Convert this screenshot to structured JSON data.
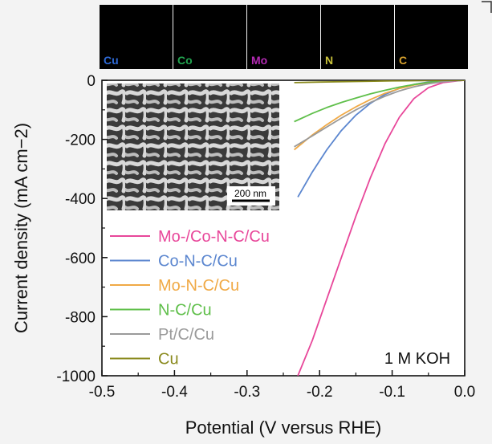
{
  "chart_data": {
    "type": "line",
    "xlabel": "Potential (V versus RHE)",
    "ylabel": "Current density (mA cm−2)",
    "xlim": [
      -0.5,
      0.0
    ],
    "ylim": [
      -1000,
      0
    ],
    "xticks": [
      "-0.5",
      "-0.4",
      "-0.3",
      "-0.2",
      "-0.1",
      "0.0"
    ],
    "yticks": [
      "0",
      "-200",
      "-400",
      "-600",
      "-800",
      "-1000"
    ],
    "grid": false,
    "legend_placement": "lower-left",
    "annotation": "1 M KOH",
    "scale_bar_label": "200 nm",
    "element_maps": [
      {
        "label": "Cu",
        "color": "#2f6bd8"
      },
      {
        "label": "Co",
        "color": "#22a550"
      },
      {
        "label": "Mo",
        "color": "#b42ab4"
      },
      {
        "label": "N",
        "color": "#c9c23a"
      },
      {
        "label": "C",
        "color": "#d9a32e"
      }
    ],
    "series": [
      {
        "name": "Mo-/Co-N-C/Cu",
        "color": "#e8479a",
        "x": [
          -0.23,
          -0.21,
          -0.19,
          -0.17,
          -0.15,
          -0.13,
          -0.11,
          -0.09,
          -0.07,
          -0.05,
          -0.03,
          -0.01,
          0.0
        ],
        "y": [
          -1000,
          -880,
          -740,
          -600,
          -460,
          -330,
          -215,
          -125,
          -62,
          -25,
          -8,
          -2,
          0
        ]
      },
      {
        "name": "Co-N-C/Cu",
        "color": "#5b86cf",
        "x": [
          -0.23,
          -0.21,
          -0.19,
          -0.17,
          -0.15,
          -0.13,
          -0.11,
          -0.09,
          -0.07,
          -0.05,
          -0.03,
          -0.01,
          0.0
        ],
        "y": [
          -395,
          -310,
          -235,
          -170,
          -118,
          -78,
          -48,
          -27,
          -14,
          -6,
          -2,
          -1,
          0
        ]
      },
      {
        "name": "Mo-N-C/Cu",
        "color": "#f0a945",
        "x": [
          -0.235,
          -0.21,
          -0.19,
          -0.17,
          -0.15,
          -0.13,
          -0.11,
          -0.09,
          -0.07,
          -0.05,
          -0.03,
          -0.01,
          0.0
        ],
        "y": [
          -235,
          -185,
          -150,
          -118,
          -90,
          -65,
          -44,
          -28,
          -16,
          -8,
          -3,
          -1,
          0
        ]
      },
      {
        "name": "N-C/Cu",
        "color": "#5fbf4a",
        "x": [
          -0.235,
          -0.21,
          -0.19,
          -0.17,
          -0.15,
          -0.13,
          -0.11,
          -0.09,
          -0.07,
          -0.05,
          -0.03,
          -0.01,
          0.0
        ],
        "y": [
          -140,
          -112,
          -92,
          -75,
          -60,
          -46,
          -34,
          -23,
          -14,
          -7,
          -3,
          -1,
          0
        ]
      },
      {
        "name": "Pt/C/Cu",
        "color": "#9a9a9a",
        "x": [
          -0.235,
          -0.21,
          -0.19,
          -0.17,
          -0.15,
          -0.13,
          -0.11,
          -0.09,
          -0.07,
          -0.05,
          -0.03,
          -0.01,
          0.0
        ],
        "y": [
          -225,
          -188,
          -158,
          -128,
          -100,
          -75,
          -54,
          -36,
          -22,
          -12,
          -5,
          -1,
          0
        ]
      },
      {
        "name": "Cu",
        "color": "#8a8a1e",
        "x": [
          -0.235,
          -0.2,
          -0.15,
          -0.1,
          -0.05,
          0.0
        ],
        "y": [
          -8,
          -6,
          -4,
          -2,
          -1,
          0
        ]
      }
    ]
  }
}
